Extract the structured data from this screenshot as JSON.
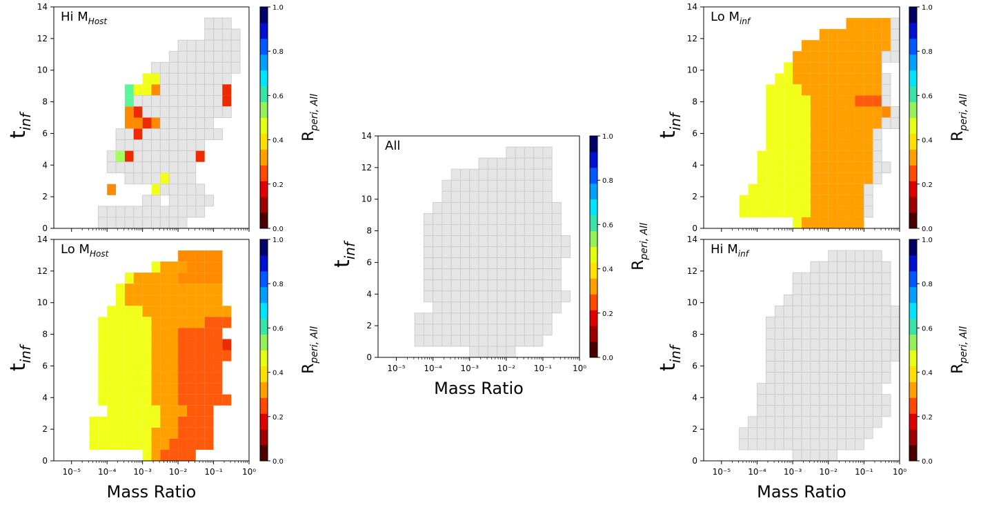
{
  "palette": {
    "bands": [
      "#4a0000",
      "#9e0000",
      "#e00000",
      "#ff4a00",
      "#ffa000",
      "#ffe000",
      "#e4ff12",
      "#96f05a",
      "#3ae3a8",
      "#00e4ff",
      "#00a0ff",
      "#0058ff",
      "#0010d0",
      "#00006a"
    ],
    "bins": [
      "#ffe24a",
      "#f2ff1a",
      "#f5ff00",
      "#f5ff1a",
      "#d8ff33",
      "#a4ff5c",
      "#8cff6e",
      "#5bf59c",
      "#ffa000",
      "#ff8a00",
      "#ff5a0c",
      "#ee2a00",
      "#cc0000",
      "#e5e5e5"
    ],
    "grid": "#c8c8c8"
  },
  "panels": [
    {
      "id": "hi-mhost",
      "label_main": "Hi M",
      "label_sub": "Host",
      "ylabel_main": "t",
      "ylabel_sub": "inf",
      "xlabel": "",
      "cblabel_main": "R",
      "cblabel_sub": "peri, All",
      "xtick_labels": [],
      "ytick_labels": [
        "0",
        "2",
        "4",
        "6",
        "8",
        "10",
        "12",
        "14"
      ],
      "cb_tick_labels": [
        "0.0",
        "0.2",
        "0.4",
        "0.6",
        "0.8",
        "1.0"
      ],
      "chart_data": {
        "type": "heatmap",
        "x_scale": "log",
        "xlim": [
          1e-05,
          1
        ],
        "x_edges": [
          -5.5,
          -5.25,
          -5.0,
          -4.75,
          -4.5,
          -4.25,
          -4.0,
          -3.75,
          -3.5,
          -3.25,
          -3.0,
          -2.75,
          -2.5,
          -2.25,
          -2.0,
          -1.75,
          -1.5,
          -1.25,
          -1.0,
          -0.75,
          -0.5,
          -0.25,
          0.0
        ],
        "ylim": [
          0,
          14
        ],
        "y_edges": [
          0,
          0.7,
          1.4,
          2.1,
          2.8,
          3.5,
          4.2,
          4.9,
          5.6,
          6.3,
          7.0,
          7.7,
          8.4,
          9.1,
          9.8,
          10.5,
          11.2,
          11.9,
          12.6,
          13.3,
          14.0
        ],
        "clim": [
          0,
          1
        ],
        "cmap_levels": 14,
        "rows": [
          "......................",
          ".................nnn..",
          ".................nnnn.",
          "..............nnnnnnn.",
          ".............nnnnnnnn.",
          "...........nnnnnnnnnn.",
          "..........22nnnnnnnn..",
          "........C22FnnnnnnnN..",
          "........CnnnnnnnnnnN..",
          "........FNnnnnnnnnnn..",
          "........FFNFnnnnnn....",
          ".......nnNnnnnnnnnn...",
          ".......nnnnnnnnnn.....",
          "......n6NnnnnnnnN.....",
          "......nnnnnnnnnn.....",
          "........nnnn2nnn......",
          "......F....2nnnnn.....",
          "..........nn.nnnnn....",
          ".....nnnnnnnnnnnn.....",
          ".....nnnnnnnnnn......."
        ]
      }
    },
    {
      "id": "lo-mhost",
      "label_main": "Lo M",
      "label_sub": "Host",
      "ylabel_main": "t",
      "ylabel_sub": "inf",
      "xlabel": "Mass Ratio",
      "cblabel_main": "R",
      "cblabel_sub": "peri, All",
      "xtick_labels": [
        "10⁻⁵",
        "10⁻⁴",
        "10⁻³",
        "10⁻²",
        "10⁻¹",
        "10⁰"
      ],
      "ytick_labels": [
        "0",
        "2",
        "4",
        "6",
        "8",
        "10",
        "12",
        "14"
      ],
      "cb_tick_labels": [
        "0.0",
        "0.2",
        "0.4",
        "0.6",
        "0.8",
        "1.0"
      ],
      "chart_data": {
        "type": "heatmap",
        "x_scale": "log",
        "xlim": [
          1e-05,
          1
        ],
        "x_edges": [
          -5.5,
          -5.25,
          -5.0,
          -4.75,
          -4.5,
          -4.25,
          -4.0,
          -3.75,
          -3.5,
          -3.25,
          -3.0,
          -2.75,
          -2.5,
          -2.25,
          -2.0,
          -1.75,
          -1.5,
          -1.25,
          -1.0,
          -0.75,
          -0.5,
          -0.25,
          0.0
        ],
        "ylim": [
          0,
          14
        ],
        "y_edges": [
          0,
          0.7,
          1.4,
          2.1,
          2.8,
          3.5,
          4.2,
          4.9,
          5.6,
          6.3,
          7.0,
          7.7,
          8.4,
          9.1,
          9.8,
          10.5,
          11.2,
          11.9,
          12.6,
          13.3,
          14.0
        ],
        "clim": [
          0,
          1
        ],
        "cmap_levels": 14,
        "rows": [
          "......................",
          "..............FFFFF...",
          "...........2AAAFFFF...",
          "........2AAAAAFFFFF...",
          ".......2AAAAAAAAAAA...",
          ".......2AAAAAAAAAAA...",
          "......2222AAAAAAAAAA..",
          ".....222222AAAAAAHHH..",
          ".....222222AAAHHHHH...",
          ".....222222AAAHHHHHN..",
          ".....222222AAAHHHHHH..",
          ".....222222AAAHHHHH...",
          ".....222222AAAHHHHH...",
          ".....222222AAAHHHHH...",
          ".....222222AAAHHHHHH..",
          "......222222AAAHHH....",
          "....22222222AAHHHH....",
          "....2222222AAAHHHH....",
          "....2222222AAHHHHH....",
          "..........2AHHHH......"
        ]
      }
    },
    {
      "id": "all",
      "label_main": "All",
      "label_sub": "",
      "ylabel_main": "t",
      "ylabel_sub": "inf",
      "xlabel": "Mass Ratio",
      "cblabel_main": "R",
      "cblabel_sub": "peri, All",
      "xtick_labels": [
        "10⁻⁵",
        "10⁻⁴",
        "10⁻³",
        "10⁻²",
        "10⁻¹",
        "10⁰"
      ],
      "ytick_labels": [
        "0",
        "2",
        "4",
        "6",
        "8",
        "10",
        "12",
        "14"
      ],
      "cb_tick_labels": [
        "0.0",
        "0.2",
        "0.4",
        "0.6",
        "0.8",
        "1.0"
      ],
      "chart_data": {
        "type": "heatmap",
        "x_scale": "log",
        "xlim": [
          1e-05,
          1
        ],
        "x_edges": [
          -5.5,
          -5.25,
          -5.0,
          -4.75,
          -4.5,
          -4.25,
          -4.0,
          -3.75,
          -3.5,
          -3.25,
          -3.0,
          -2.75,
          -2.5,
          -2.25,
          -2.0,
          -1.75,
          -1.5,
          -1.25,
          -1.0,
          -0.75,
          -0.5,
          -0.25,
          0.0
        ],
        "ylim": [
          0,
          14
        ],
        "y_edges": [
          0,
          0.7,
          1.4,
          2.1,
          2.8,
          3.5,
          4.2,
          4.9,
          5.6,
          6.3,
          7.0,
          7.7,
          8.4,
          9.1,
          9.8,
          10.5,
          11.2,
          11.9,
          12.6,
          13.3,
          14.0
        ],
        "clim": [
          0,
          1
        ],
        "cmap_levels": 14,
        "rows": [
          "......................",
          "..............nnnnn...",
          "...........nnnnnnnn...",
          "........nnnnnnnnnnn...",
          ".......nnnnnnnnnnnn...",
          ".......nnnnnnnnnnnn...",
          "......nnnnnnnnnnnnnn..",
          ".....nnnnnnnnnnnnnnn..",
          ".....nnnnnnnnnnnnnnn..",
          ".....nnnnnnnnnnnnnnnn.",
          ".....nnnnnnnnnnnnnnnn.",
          ".....nnnnnnnnnnnnnnn..",
          ".....nnnnnnnnnnnnnnn..",
          ".....nnnnnnnnnnnnnnn..",
          ".....nnnnnnnnnnnnnnnn.",
          "......nnnnnnnnnnnnnn..",
          "....nnnnnnnnnnnnnnn...",
          "....nnnnnnnnnnnnnnn...",
          "....nnnnnnnnnnnnnn....",
          "..........nnnnn......."
        ]
      }
    },
    {
      "id": "lo-minf",
      "label_main": "Lo M",
      "label_sub": "inf",
      "ylabel_main": "t",
      "ylabel_sub": "inf",
      "xlabel": "",
      "cblabel_main": "R",
      "cblabel_sub": "peri, All",
      "xtick_labels": [],
      "ytick_labels": [
        "0",
        "2",
        "4",
        "6",
        "8",
        "10",
        "12",
        "14"
      ],
      "cb_tick_labels": [
        "0.0",
        "0.2",
        "0.4",
        "0.6",
        "0.8",
        "1.0"
      ],
      "chart_data": {
        "type": "heatmap",
        "x_scale": "log",
        "xlim": [
          1e-05,
          1
        ],
        "x_edges": [
          -5.5,
          -5.25,
          -5.0,
          -4.75,
          -4.5,
          -4.25,
          -4.0,
          -3.75,
          -3.5,
          -3.25,
          -3.0,
          -2.75,
          -2.5,
          -2.25,
          -2.0,
          -1.75,
          -1.5,
          -1.25,
          -1.0,
          -0.75,
          -0.5,
          -0.25,
          0.0
        ],
        "ylim": [
          0,
          14
        ],
        "y_edges": [
          0,
          0.7,
          1.4,
          2.1,
          2.8,
          3.5,
          4.2,
          4.9,
          5.6,
          6.3,
          7.0,
          7.7,
          8.4,
          9.1,
          9.8,
          10.5,
          11.2,
          11.9,
          12.6,
          13.3,
          14.0
        ],
        "clim": [
          0,
          1
        ],
        "cmap_levels": 14,
        "rows": [
          "......................",
          "................AAAAAn",
          ".............AAAAAAAAn",
          "...........AAAAAAAAAAn",
          "..........AAAAAAAAAAnn",
          ".........2AAAAAAAAAA..",
          "........22AAAAAAAAAAn.",
          ".......2222AAAAAAAAAn.",
          ".......22222AAAAAHHHn.",
          ".......22222AAAAAAAAFn",
          ".......22222AAAAAAAAnn",
          ".......22222AAAAAAAn..",
          ".......22222AAAAAAAn..",
          "......222222AAAAAAAn..",
          "......222222AAAAAAAnn.",
          "......222222AAAAAAAn..",
          ".....2222222AAAAAAn...",
          "....22222222AAAAAAn...",
          "....22222222AAAAAAn...",
          "..........2AAAAAAA...."
        ]
      }
    },
    {
      "id": "hi-minf",
      "label_main": "Hi M",
      "label_sub": "inf",
      "ylabel_main": "t",
      "ylabel_sub": "inf",
      "xlabel": "Mass Ratio",
      "cblabel_main": "R",
      "cblabel_sub": "peri, All",
      "xtick_labels": [
        "10⁻⁵",
        "10⁻⁴",
        "10⁻³",
        "10⁻²",
        "10⁻¹",
        "10⁰"
      ],
      "ytick_labels": [
        "0",
        "2",
        "4",
        "6",
        "8",
        "10",
        "12",
        "14"
      ],
      "cb_tick_labels": [
        "0.0",
        "0.2",
        "0.4",
        "0.6",
        "0.8",
        "1.0"
      ],
      "chart_data": {
        "type": "heatmap",
        "x_scale": "log",
        "xlim": [
          1e-05,
          1
        ],
        "x_edges": [
          -5.5,
          -5.25,
          -5.0,
          -4.75,
          -4.5,
          -4.25,
          -4.0,
          -3.75,
          -3.5,
          -3.25,
          -3.0,
          -2.75,
          -2.5,
          -2.25,
          -2.0,
          -1.75,
          -1.5,
          -1.25,
          -1.0,
          -0.75,
          -0.5,
          -0.25,
          0.0
        ],
        "ylim": [
          0,
          14
        ],
        "y_edges": [
          0,
          0.7,
          1.4,
          2.1,
          2.8,
          3.5,
          4.2,
          4.9,
          5.6,
          6.3,
          7.0,
          7.7,
          8.4,
          9.1,
          9.8,
          10.5,
          11.2,
          11.9,
          12.6,
          13.3,
          14.0
        ],
        "clim": [
          0,
          1
        ],
        "cmap_levels": 14,
        "rows": [
          "......................",
          "..............nnnnnn..",
          "............nnnnnnnnn.",
          "..........nnnnnnnnnnn.",
          "..........nnnnnnnnnnn.",
          ".........nnnnnnnnnnnn.",
          "........nnnnnnnnnnnnnn",
          ".......nnnnnnnnnnnnnnn",
          ".......nnnnnnnnnnnnnnn",
          ".......nnnnnnnnnnnnnnn",
          ".......nnnnnnnnnnnnnnn",
          ".......nnnnnnnnnnnnnn.",
          ".......nnnnnnnnnnnnnn.",
          "......nnnnnnnnnnnnnn..",
          "......nnnnnnnnnnnnnnn.",
          "......nnnnnnnnnnnnnnn.",
          ".....nnnnnnnnnnnnnnn..",
          "....nnnnnnnnnnnnnnn...",
          "....nnnnnnnnnnnnnn....",
          "..........nnnnn......."
        ]
      }
    }
  ]
}
